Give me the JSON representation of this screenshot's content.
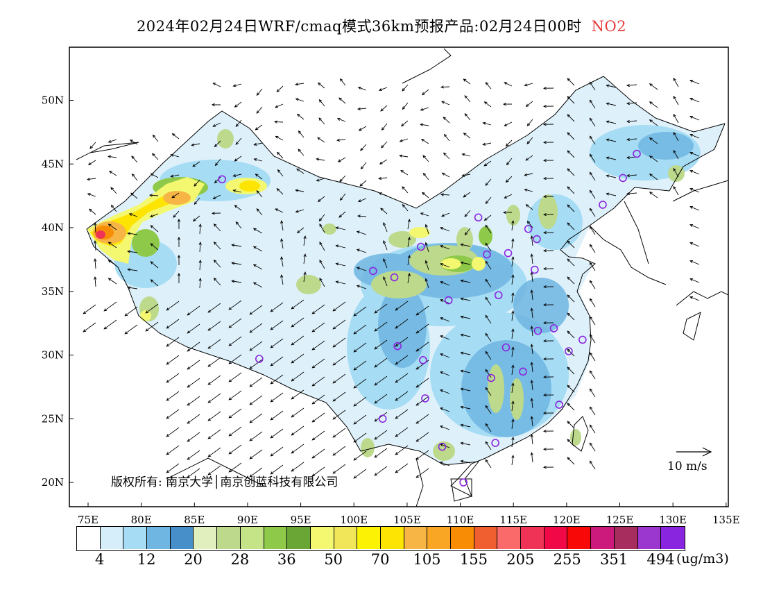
{
  "title": {
    "main": "2024年02月24日WRF/cmaq模式36km预报产品:02月24日00时",
    "species": "NO2"
  },
  "axes": {
    "lat_labels": [
      "50N",
      "45N",
      "40N",
      "35N",
      "30N",
      "25N",
      "20N"
    ],
    "lon_labels": [
      "75E",
      "80E",
      "85E",
      "90E",
      "95E",
      "100E",
      "105E",
      "110E",
      "115E",
      "120E",
      "125E",
      "130E",
      "135E"
    ]
  },
  "copyright": "版权所有: 南京大学│南京创蓝科技有限公司",
  "wind_scale_label": "10 m/s",
  "legend": {
    "colors": [
      "#ffffff",
      "#d6eefa",
      "#a6dcf4",
      "#6fb6e2",
      "#468fc8",
      "#e0efbd",
      "#bcd98c",
      "#c5e487",
      "#8fc94a",
      "#6aa636",
      "#f3f870",
      "#f1e65a",
      "#fcf203",
      "#fde403",
      "#f7b546",
      "#f8a623",
      "#f98c05",
      "#ef5f2f",
      "#fb6a6a",
      "#ef3357",
      "#f10846",
      "#f90808",
      "#cb1a7c",
      "#a62d5d",
      "#9b36cf",
      "#8a25df"
    ],
    "labels": [
      "4",
      "12",
      "20",
      "28",
      "36",
      "50",
      "70",
      "105",
      "155",
      "205",
      "255",
      "351",
      "494"
    ],
    "unit": "(ug/m3)"
  },
  "stations": [
    {
      "lon": 87.6,
      "lat": 43.8
    },
    {
      "lon": 126.6,
      "lat": 45.8
    },
    {
      "lon": 125.3,
      "lat": 43.9
    },
    {
      "lon": 123.4,
      "lat": 41.8
    },
    {
      "lon": 111.7,
      "lat": 40.8
    },
    {
      "lon": 116.4,
      "lat": 39.9
    },
    {
      "lon": 117.2,
      "lat": 39.1
    },
    {
      "lon": 106.3,
      "lat": 38.5
    },
    {
      "lon": 114.5,
      "lat": 38.0
    },
    {
      "lon": 112.5,
      "lat": 37.9
    },
    {
      "lon": 117.0,
      "lat": 36.7
    },
    {
      "lon": 101.8,
      "lat": 36.6
    },
    {
      "lon": 103.8,
      "lat": 36.1
    },
    {
      "lon": 113.6,
      "lat": 34.7
    },
    {
      "lon": 108.9,
      "lat": 34.3
    },
    {
      "lon": 117.3,
      "lat": 31.9
    },
    {
      "lon": 118.8,
      "lat": 32.1
    },
    {
      "lon": 121.5,
      "lat": 31.2
    },
    {
      "lon": 114.3,
      "lat": 30.6
    },
    {
      "lon": 120.2,
      "lat": 30.3
    },
    {
      "lon": 104.1,
      "lat": 30.7
    },
    {
      "lon": 106.5,
      "lat": 29.6
    },
    {
      "lon": 91.1,
      "lat": 29.7
    },
    {
      "lon": 112.9,
      "lat": 28.2
    },
    {
      "lon": 115.9,
      "lat": 28.7
    },
    {
      "lon": 106.7,
      "lat": 26.6
    },
    {
      "lon": 119.3,
      "lat": 26.1
    },
    {
      "lon": 102.7,
      "lat": 25.0
    },
    {
      "lon": 108.3,
      "lat": 22.8
    },
    {
      "lon": 113.3,
      "lat": 23.1
    },
    {
      "lon": 110.3,
      "lat": 20.0
    }
  ]
}
